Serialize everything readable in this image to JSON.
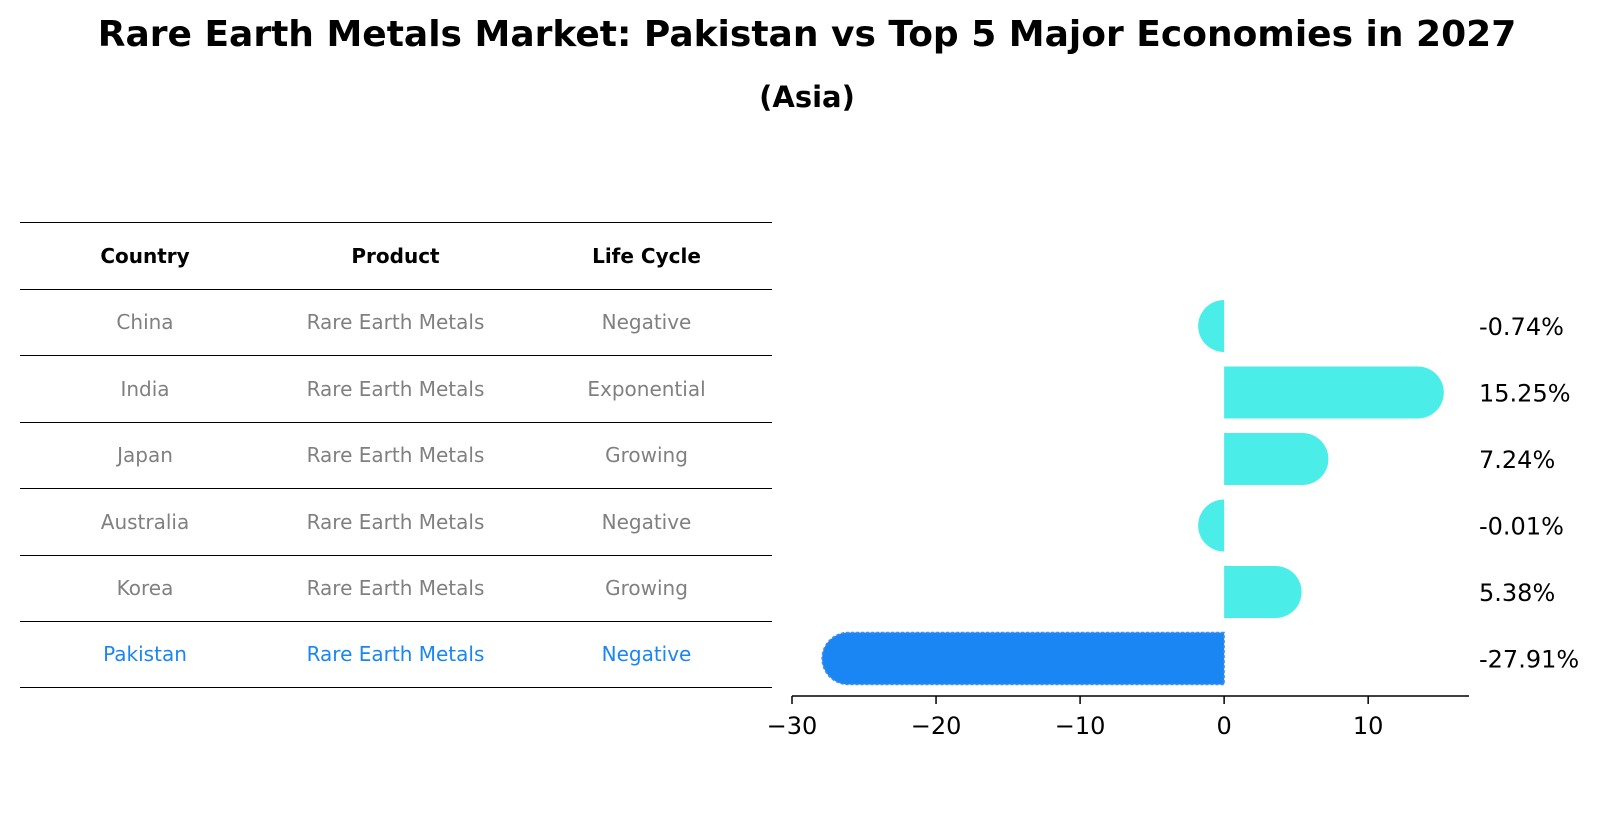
{
  "chart_data": {
    "type": "bar",
    "orientation": "horizontal",
    "title": "Rare Earth Metals Market: Pakistan vs Top 5 Major Economies in 2027",
    "subtitle": "(Asia)",
    "categories": [
      "China",
      "India",
      "Japan",
      "Australia",
      "Korea",
      "Pakistan"
    ],
    "values": [
      -0.74,
      15.25,
      7.24,
      -0.01,
      5.38,
      -27.91
    ],
    "value_labels": [
      "-0.74%",
      "15.25%",
      "7.24%",
      "-0.01%",
      "5.38%",
      "-27.91%"
    ],
    "xlim": [
      -30,
      17
    ],
    "xticks": [
      -30,
      -20,
      -10,
      0,
      10
    ],
    "xtick_labels": [
      "−30",
      "−20",
      "−10",
      "0",
      "10"
    ],
    "grid": false,
    "colors": {
      "default_bar": "#4BEDE8",
      "highlight_bar": "#1A86F4",
      "default_text": "#808080",
      "highlight_text": "#1A86F4"
    },
    "highlight_index": 5
  },
  "table": {
    "headers": [
      "Country",
      "Product",
      "Life Cycle"
    ],
    "rows": [
      [
        "China",
        "Rare Earth Metals",
        "Negative"
      ],
      [
        "India",
        "Rare Earth Metals",
        "Exponential"
      ],
      [
        "Japan",
        "Rare Earth Metals",
        "Growing"
      ],
      [
        "Australia",
        "Rare Earth Metals",
        "Negative"
      ],
      [
        "Korea",
        "Rare Earth Metals",
        "Growing"
      ],
      [
        "Pakistan",
        "Rare Earth Metals",
        "Negative"
      ]
    ]
  }
}
